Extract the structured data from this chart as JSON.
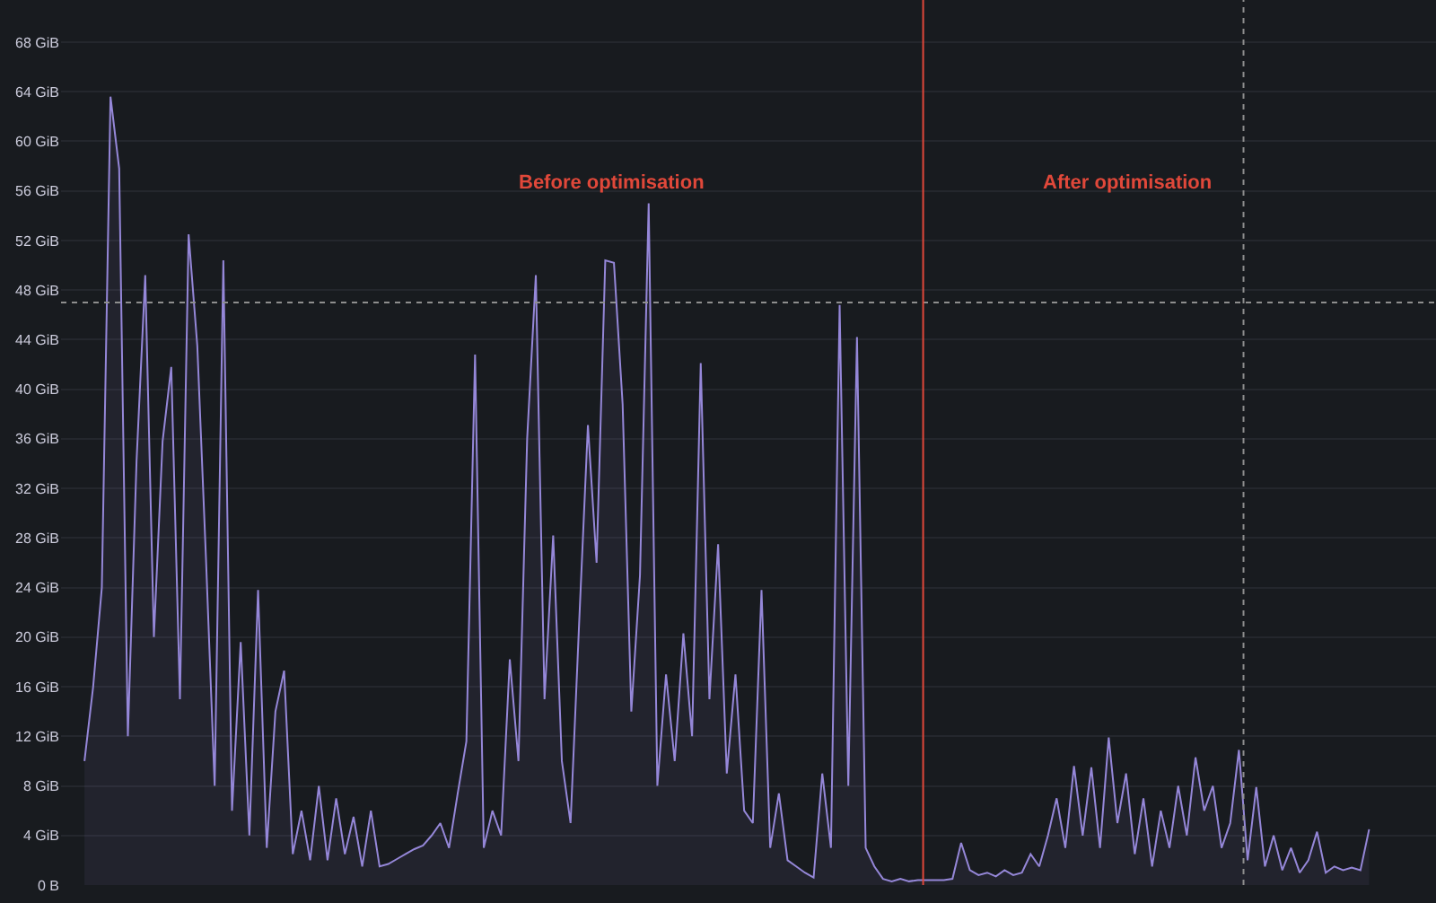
{
  "chart_data": {
    "type": "area",
    "categories": [
      null,
      null,
      null,
      null,
      null,
      null,
      null,
      null,
      null,
      null,
      null,
      null,
      null,
      null,
      null,
      null,
      null,
      null,
      null,
      null,
      null,
      null,
      null,
      null,
      null,
      null,
      null,
      null,
      null,
      null,
      null,
      null,
      null,
      null,
      null,
      null,
      null,
      null,
      null,
      null,
      null,
      null,
      null,
      null,
      null,
      null,
      null,
      null,
      null,
      null,
      null,
      null,
      null,
      null,
      null,
      null,
      null,
      null,
      null,
      null,
      null,
      null,
      null,
      null,
      null,
      null,
      null,
      null,
      null,
      null,
      null,
      null,
      null,
      null,
      null,
      null,
      null,
      null,
      null,
      null,
      null,
      null,
      null,
      null,
      null,
      null,
      null,
      null,
      null,
      null,
      null,
      null,
      null,
      null,
      null,
      null,
      null,
      null,
      null,
      null,
      null,
      null,
      null,
      null,
      null,
      null,
      null,
      null,
      null,
      null,
      null,
      null,
      null,
      null,
      null,
      null,
      null,
      null,
      null,
      null,
      null,
      null,
      null,
      null,
      null,
      null,
      null,
      null,
      null,
      null,
      null,
      null,
      null,
      null,
      null,
      null,
      null,
      null,
      null,
      null,
      null,
      null,
      null,
      null,
      null,
      null,
      null,
      null,
      null
    ],
    "series": [
      {
        "color": "#9587d8",
        "values": [
          10,
          16,
          24,
          63.6,
          57.8,
          12,
          34.2,
          49.2,
          20,
          35.8,
          41.8,
          15,
          52.5,
          43.5,
          26.3,
          8,
          50.4,
          6,
          19.6,
          4,
          23.8,
          3,
          14,
          17.3,
          2.5,
          6,
          2,
          8,
          2,
          7,
          2.5,
          5.5,
          1.5,
          6,
          1.5,
          1.7,
          2.1,
          2.5,
          2.9,
          3.2,
          4,
          5,
          3,
          7.4,
          11.6,
          42.8,
          3,
          6,
          4,
          18.2,
          10,
          36,
          49.2,
          15,
          28.2,
          10,
          5,
          21.3,
          37.1,
          26,
          50.4,
          50.2,
          38.8,
          14,
          25,
          55,
          8,
          17,
          10,
          20.3,
          12,
          42.1,
          15,
          27.5,
          9,
          17,
          6,
          5,
          23.8,
          3,
          7.4,
          2,
          1.5,
          1,
          0.6,
          9,
          3,
          46.8,
          8,
          44.2,
          3,
          1.5,
          0.5,
          0.3,
          0.5,
          0.3,
          0.4,
          0.4,
          0.4,
          0.4,
          0.5,
          3.4,
          1.2,
          0.8,
          1,
          0.7,
          1.2,
          0.8,
          1,
          2.5,
          1.5,
          4,
          7,
          3,
          9.6,
          4,
          9.5,
          3,
          11.9,
          5,
          9,
          2.5,
          7,
          1.5,
          6,
          3,
          8,
          4,
          10.3,
          6,
          8,
          3,
          5,
          10.9,
          2,
          7.9,
          1.5,
          4,
          1.2,
          3,
          1,
          2,
          4.3,
          1,
          1.5,
          1.2,
          1.4,
          1.2,
          4.5
        ]
      }
    ],
    "ylim": [
      0,
      71.4
    ],
    "yticks": [
      {
        "value": 0,
        "label": "0 B"
      },
      {
        "value": 4,
        "label": "4 GiB"
      },
      {
        "value": 8,
        "label": "8 GiB"
      },
      {
        "value": 12,
        "label": "12 GiB"
      },
      {
        "value": 16,
        "label": "16 GiB"
      },
      {
        "value": 20,
        "label": "20 GiB"
      },
      {
        "value": 24,
        "label": "24 GiB"
      },
      {
        "value": 28,
        "label": "28 GiB"
      },
      {
        "value": 32,
        "label": "32 GiB"
      },
      {
        "value": 36,
        "label": "36 GiB"
      },
      {
        "value": 40,
        "label": "40 GiB"
      },
      {
        "value": 44,
        "label": "44 GiB"
      },
      {
        "value": 48,
        "label": "48 GiB"
      },
      {
        "value": 52,
        "label": "52 GiB"
      },
      {
        "value": 56,
        "label": "56 GiB"
      },
      {
        "value": 60,
        "label": "60 GiB"
      },
      {
        "value": 64,
        "label": "64 GiB"
      },
      {
        "value": 68,
        "label": "68 GiB"
      }
    ],
    "ref_lines": [
      {
        "axis": "y",
        "value": 47.0,
        "color": "#8e8e8e",
        "line_style": "dotted"
      }
    ],
    "annotations": [
      "Before optimisation",
      "After optimisation"
    ],
    "grid": "y",
    "tick_labels": "y"
  }
}
